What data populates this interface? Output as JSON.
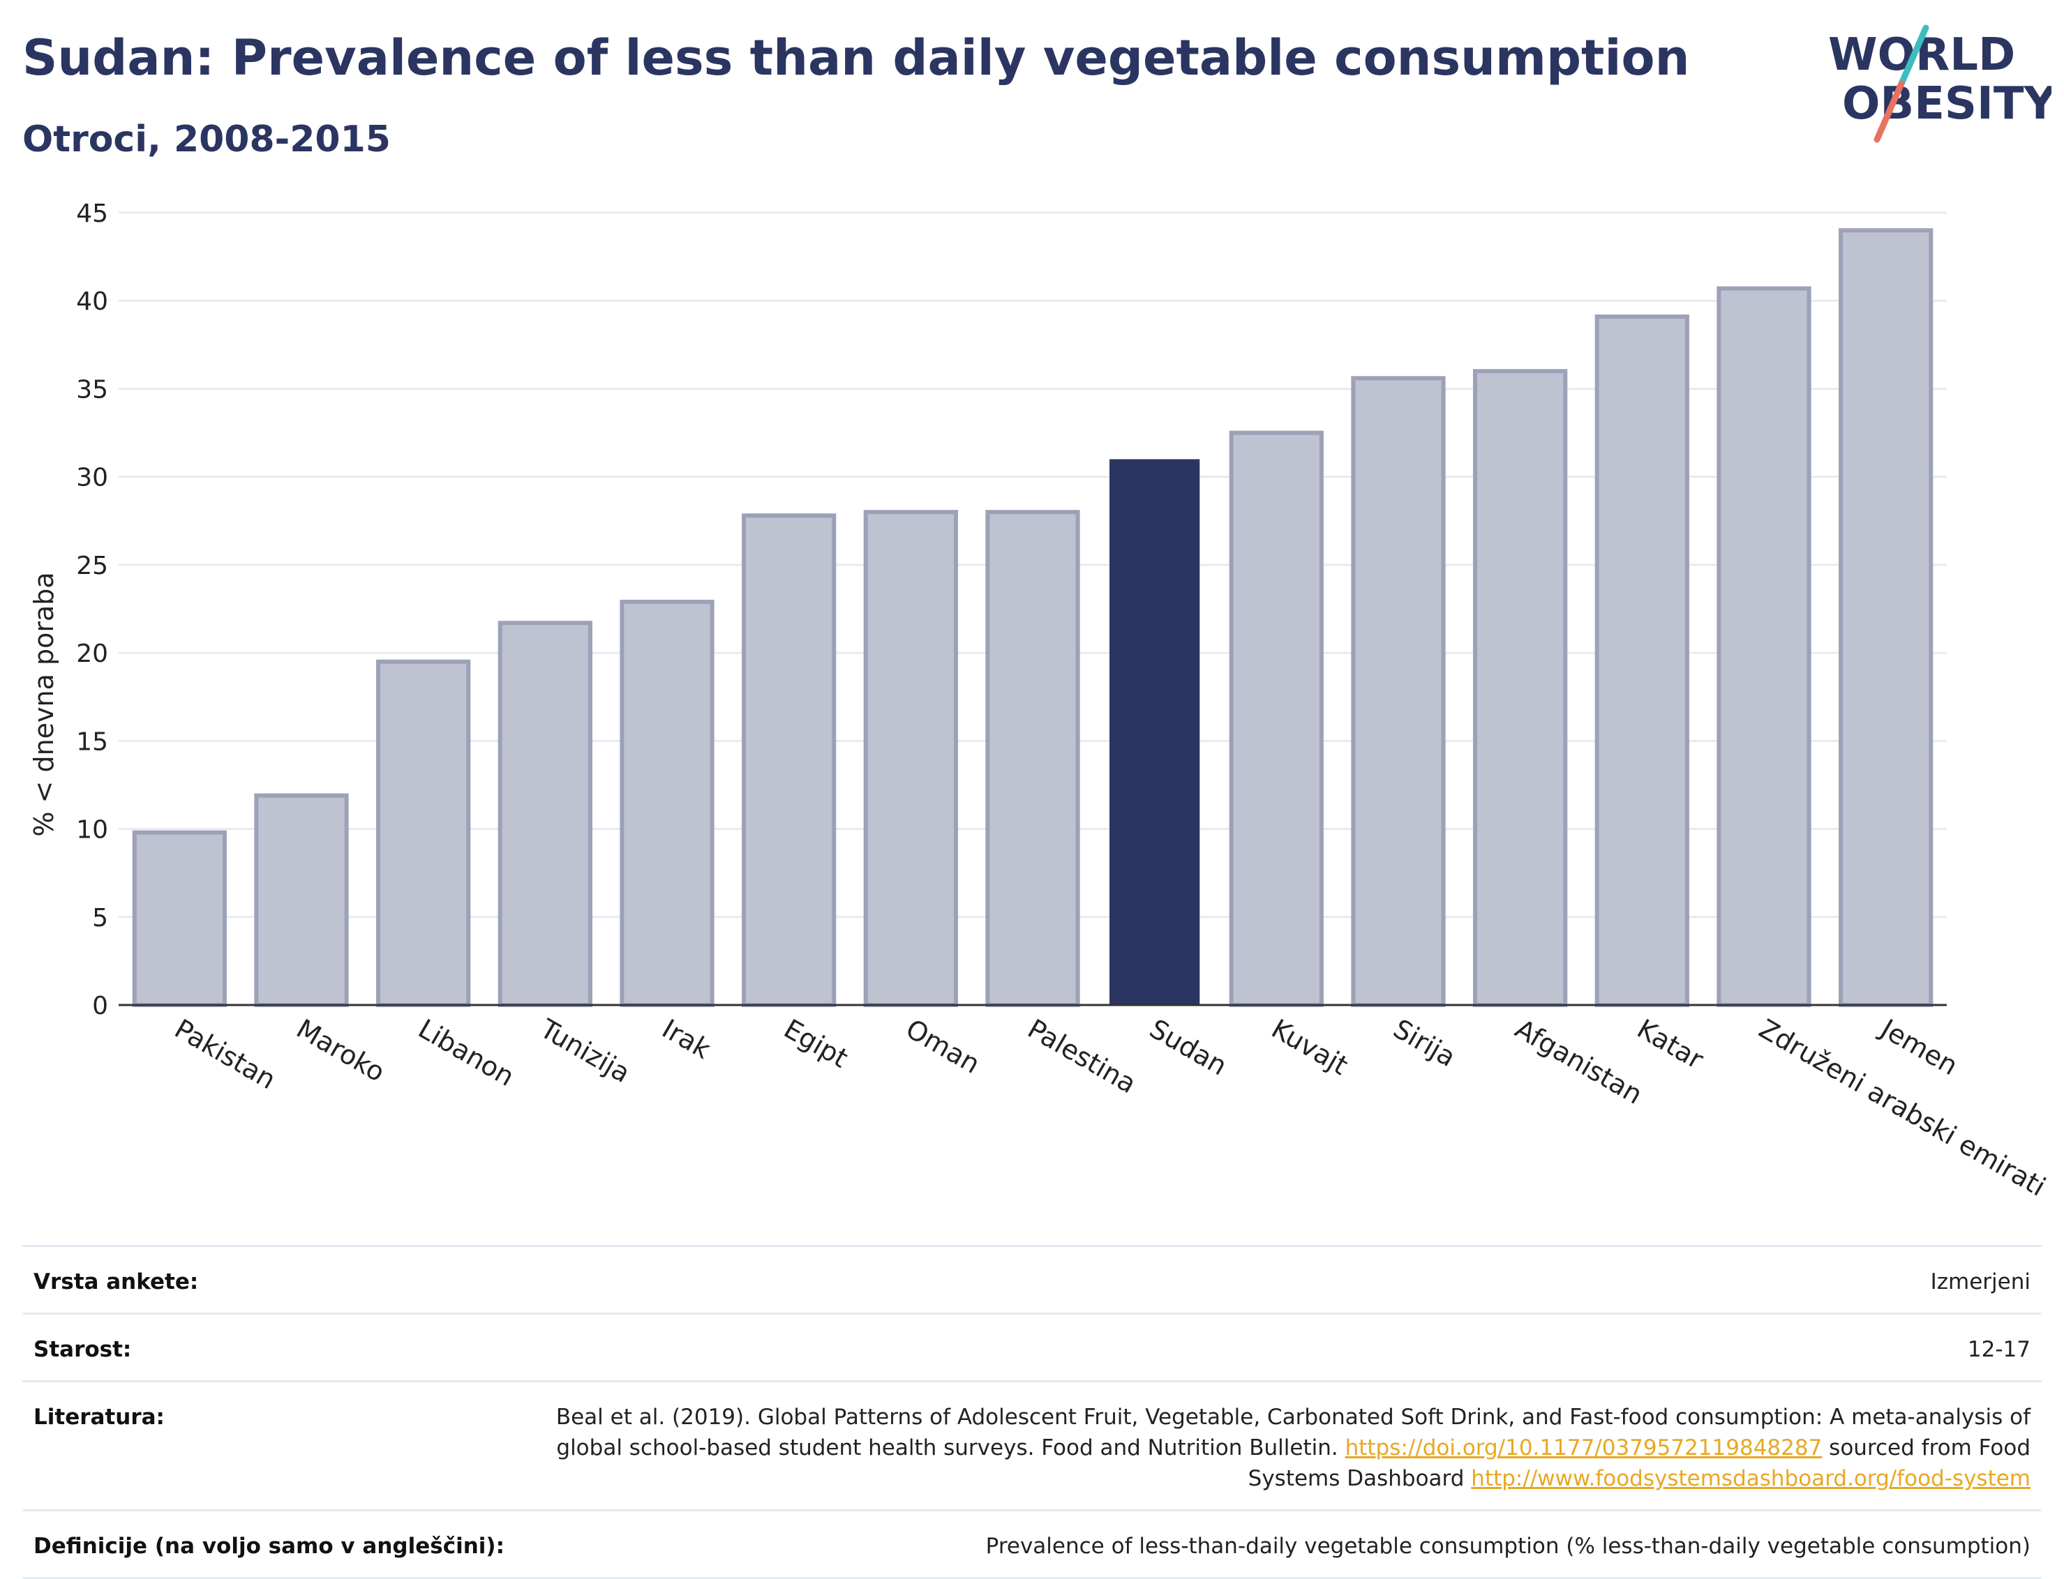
{
  "header": {
    "title": "Sudan: Prevalence of less than daily vegetable consumption",
    "subtitle": "Otroci, 2008-2015"
  },
  "logo": {
    "line1": "WORLD",
    "line2": "OBESITY"
  },
  "colors": {
    "title": "#2b3561",
    "bar": "#bfc2d0",
    "bar_border": "#9da1b8",
    "bar_highlight": "#2b3561",
    "grid": "#e8ebef",
    "axis": "#333333",
    "logo_teal": "#3dbdbf",
    "logo_coral": "#e8735f",
    "link": "#e7a823"
  },
  "chart_data": {
    "type": "bar",
    "title": "Sudan: Prevalence of less than daily vegetable consumption",
    "subtitle": "Otroci, 2008-2015",
    "ylabel": "% < dnevna poraba",
    "xlabel": "",
    "ylim": [
      0,
      45
    ],
    "yticks": [
      0,
      5,
      10,
      15,
      20,
      25,
      30,
      35,
      40,
      45
    ],
    "grid": true,
    "highlight": "Sudan",
    "categories": [
      "Pakistan",
      "Maroko",
      "Libanon",
      "Tunizija",
      "Irak",
      "Egipt",
      "Oman",
      "Palestina",
      "Sudan",
      "Kuvajt",
      "Sirija",
      "Afganistan",
      "Katar",
      "Združeni arabski emirati",
      "Jemen"
    ],
    "values": [
      9.8,
      11.9,
      19.5,
      21.7,
      22.9,
      27.8,
      28.0,
      28.0,
      31.0,
      32.5,
      35.6,
      36.0,
      39.1,
      40.7,
      44.0
    ]
  },
  "meta": {
    "survey_label": "Vrsta ankete:",
    "survey_value": "Izmerjeni",
    "age_label": "Starost:",
    "age_value": "12-17",
    "lit_label": "Literatura:",
    "lit_text1": "Beal et al. (2019). Global Patterns of Adolescent Fruit, Vegetable, Carbonated Soft Drink, and Fast-food consumption: A meta-analysis of global school-based student health surveys. Food and Nutrition Bulletin. ",
    "lit_link1": "https://doi.org/10.1177/0379572119848287",
    "lit_text2": " sourced from Food Systems Dashboard ",
    "lit_link2": "http://www.foodsystemsdashboard.org/food-system",
    "def_label": "Definicije (na voljo samo v angleščini):",
    "def_value": "Prevalence of less-than-daily vegetable consumption (% less-than-daily vegetable consumption)"
  }
}
